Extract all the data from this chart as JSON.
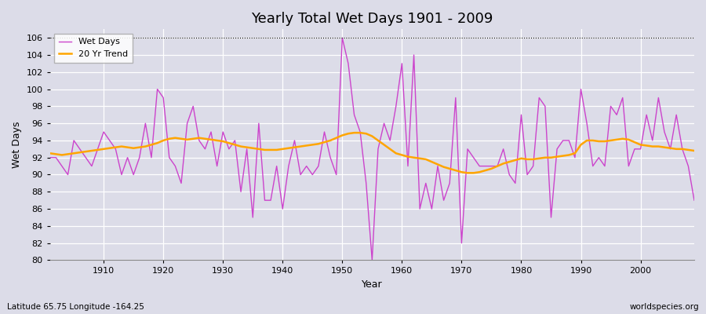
{
  "title": "Yearly Total Wet Days 1901 - 2009",
  "xlabel": "Year",
  "ylabel": "Wet Days",
  "lat_lon_label": "Latitude 65.75 Longitude -164.25",
  "website_label": "worldspecies.org",
  "ylim": [
    80,
    107
  ],
  "yticks": [
    80,
    82,
    84,
    86,
    88,
    90,
    92,
    94,
    96,
    98,
    100,
    102,
    104,
    106
  ],
  "xticks": [
    1910,
    1920,
    1930,
    1940,
    1950,
    1960,
    1970,
    1980,
    1990,
    2000
  ],
  "line_color": "#cc44cc",
  "trend_color": "#FFA500",
  "bg_color": "#dcdce8",
  "plot_bg_color": "#dcdce8",
  "years": [
    1901,
    1902,
    1903,
    1904,
    1905,
    1906,
    1907,
    1908,
    1909,
    1910,
    1911,
    1912,
    1913,
    1914,
    1915,
    1916,
    1917,
    1918,
    1919,
    1920,
    1921,
    1922,
    1923,
    1924,
    1925,
    1926,
    1927,
    1928,
    1929,
    1930,
    1931,
    1932,
    1933,
    1934,
    1935,
    1936,
    1937,
    1938,
    1939,
    1940,
    1941,
    1942,
    1943,
    1944,
    1945,
    1946,
    1947,
    1948,
    1949,
    1950,
    1951,
    1952,
    1953,
    1954,
    1955,
    1956,
    1957,
    1958,
    1959,
    1960,
    1961,
    1962,
    1963,
    1964,
    1965,
    1966,
    1967,
    1968,
    1969,
    1970,
    1971,
    1972,
    1973,
    1974,
    1975,
    1976,
    1977,
    1978,
    1979,
    1980,
    1981,
    1982,
    1983,
    1984,
    1985,
    1986,
    1987,
    1988,
    1989,
    1990,
    1991,
    1992,
    1993,
    1994,
    1995,
    1996,
    1997,
    1998,
    1999,
    2000,
    2001,
    2002,
    2003,
    2004,
    2005,
    2006,
    2007,
    2008,
    2009
  ],
  "wet_days": [
    92,
    92,
    91,
    90,
    94,
    93,
    92,
    91,
    93,
    95,
    94,
    93,
    90,
    92,
    90,
    92,
    96,
    92,
    100,
    99,
    92,
    91,
    89,
    96,
    98,
    94,
    93,
    95,
    91,
    95,
    93,
    94,
    88,
    93,
    85,
    96,
    87,
    87,
    91,
    86,
    91,
    94,
    90,
    91,
    90,
    91,
    95,
    92,
    90,
    106,
    103,
    97,
    95,
    89,
    80,
    93,
    96,
    94,
    98,
    103,
    91,
    104,
    86,
    89,
    86,
    91,
    87,
    89,
    99,
    82,
    93,
    92,
    91,
    91,
    91,
    91,
    93,
    90,
    89,
    97,
    90,
    91,
    99,
    98,
    85,
    93,
    94,
    94,
    92,
    100,
    96,
    91,
    92,
    91,
    98,
    97,
    99,
    91,
    93,
    93,
    97,
    94,
    99,
    95,
    93,
    97,
    93,
    91,
    87
  ],
  "trend_values": [
    92.5,
    92.4,
    92.3,
    92.4,
    92.5,
    92.6,
    92.7,
    92.8,
    92.9,
    93.0,
    93.1,
    93.2,
    93.3,
    93.2,
    93.1,
    93.2,
    93.3,
    93.5,
    93.7,
    94.0,
    94.2,
    94.3,
    94.2,
    94.1,
    94.2,
    94.3,
    94.2,
    94.1,
    94.0,
    93.9,
    93.7,
    93.5,
    93.3,
    93.2,
    93.1,
    93.0,
    92.9,
    92.9,
    92.9,
    93.0,
    93.1,
    93.2,
    93.3,
    93.4,
    93.5,
    93.6,
    93.8,
    94.0,
    94.3,
    94.6,
    94.8,
    94.9,
    94.9,
    94.8,
    94.5,
    94.0,
    93.5,
    93.0,
    92.5,
    92.3,
    92.1,
    92.0,
    91.9,
    91.8,
    91.5,
    91.2,
    90.9,
    90.7,
    90.5,
    90.3,
    90.2,
    90.2,
    90.3,
    90.5,
    90.7,
    91.0,
    91.3,
    91.5,
    91.7,
    91.9,
    91.8,
    91.8,
    91.9,
    92.0,
    92.0,
    92.1,
    92.2,
    92.3,
    92.5,
    93.5,
    94.0,
    94.0,
    93.9,
    93.9,
    94.0,
    94.1,
    94.2,
    94.1,
    93.8,
    93.5,
    93.4,
    93.3,
    93.3,
    93.2,
    93.1,
    93.0,
    93.0,
    92.9,
    92.8
  ]
}
